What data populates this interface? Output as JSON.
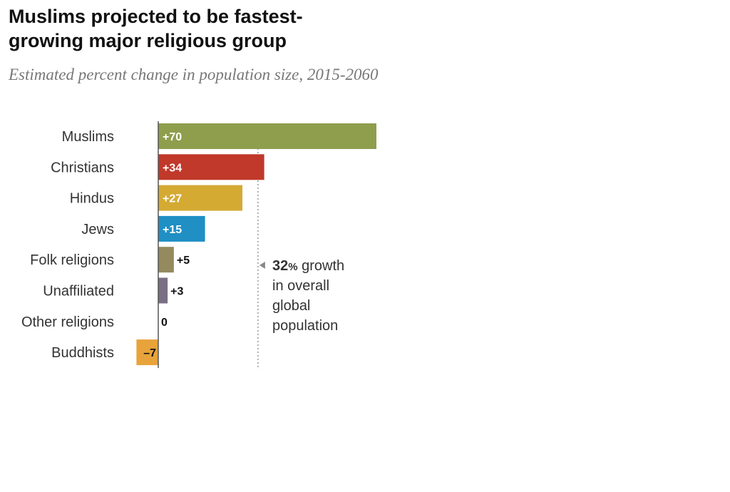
{
  "chart_data": {
    "type": "bar",
    "orientation": "horizontal",
    "title": "Muslims projected to be fastest-growing major religious group",
    "subtitle": "Estimated percent change in population size, 2015-2060",
    "categories": [
      "Muslims",
      "Christians",
      "Hindus",
      "Jews",
      "Folk religions",
      "Unaffiliated",
      "Other religions",
      "Buddhists"
    ],
    "values": [
      70,
      34,
      27,
      15,
      5,
      3,
      0,
      -7
    ],
    "value_labels": [
      "+70",
      "+34",
      "+27",
      "+15",
      "+5",
      "+3",
      "0",
      "–7"
    ],
    "colors": [
      "#8e9e4d",
      "#c0392b",
      "#d4aa33",
      "#1f8fc4",
      "#948a5e",
      "#7a6f85",
      "#999999",
      "#e8a33a"
    ],
    "xlim": [
      -7,
      70
    ],
    "reference_line": {
      "value": 32
    },
    "annotation": {
      "value": "32",
      "unit": "%",
      "lines": [
        " growth",
        "in overall",
        "global",
        "population"
      ]
    }
  }
}
